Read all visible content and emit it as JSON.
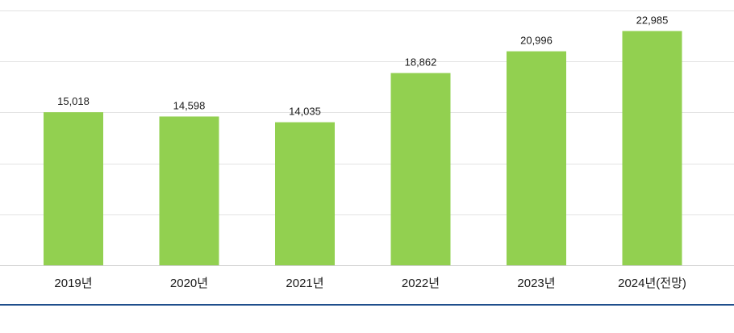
{
  "chart_data": {
    "type": "bar",
    "title": "",
    "xlabel": "",
    "ylabel": "",
    "categories": [
      "2019년",
      "2020년",
      "2021년",
      "2022년",
      "2023년",
      "2024년(전망)"
    ],
    "values": [
      15018,
      14598,
      14035,
      18862,
      20996,
      22985
    ],
    "value_labels": [
      "15,018",
      "14,598",
      "14,035",
      "18,862",
      "20,996",
      "22,985"
    ],
    "ylim": [
      0,
      25000
    ],
    "ytick_step": 5000,
    "grid": true,
    "legend": "none",
    "colors": {
      "bar": "#92d050",
      "grid": "#e3e3e3",
      "axis": "#cfcfcf",
      "label": "#1a1a1a",
      "bottom_rule": "#1f4e8c"
    }
  }
}
